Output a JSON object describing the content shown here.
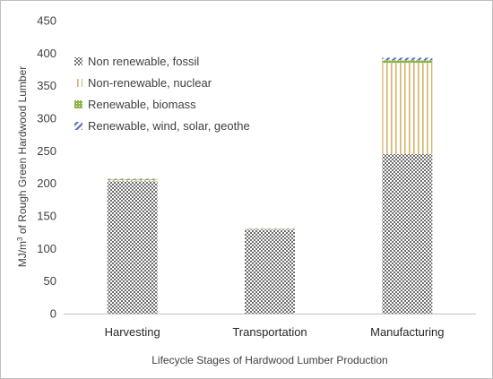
{
  "chart_data": {
    "type": "bar",
    "stacked": true,
    "categories": [
      "Harvesting",
      "Transportation",
      "Manufacturing"
    ],
    "series": [
      {
        "name": "Non renewable, fossil",
        "values": [
          203,
          129,
          245
        ],
        "color": "#7f7f7f",
        "pattern": "checker"
      },
      {
        "name": "Non-renewable, nuclear",
        "values": [
          2,
          1,
          140
        ],
        "color": "#d4b46a",
        "pattern": "vertical-stripes"
      },
      {
        "name": "Renewable, biomass",
        "values": [
          1,
          0.5,
          4
        ],
        "color": "#8fb34a",
        "pattern": "dotted-grid"
      },
      {
        "name": "Renewable, wind, solar, geothe",
        "values": [
          1,
          0.5,
          4
        ],
        "color": "#5a6fb0",
        "pattern": "diagonal-stripes"
      }
    ],
    "xlabel": "Lifecycle Stages of Hardwood Lumber Production",
    "ylabel_prefix": "MJ/m",
    "ylabel_superscript": "3",
    "ylabel_suffix": " of Rough Green Hardwood Lumber",
    "ylim": [
      0,
      450
    ],
    "yticks": [
      0,
      50,
      100,
      150,
      200,
      250,
      300,
      350,
      400,
      450
    ],
    "grid": false,
    "legend_position": "top-left"
  }
}
